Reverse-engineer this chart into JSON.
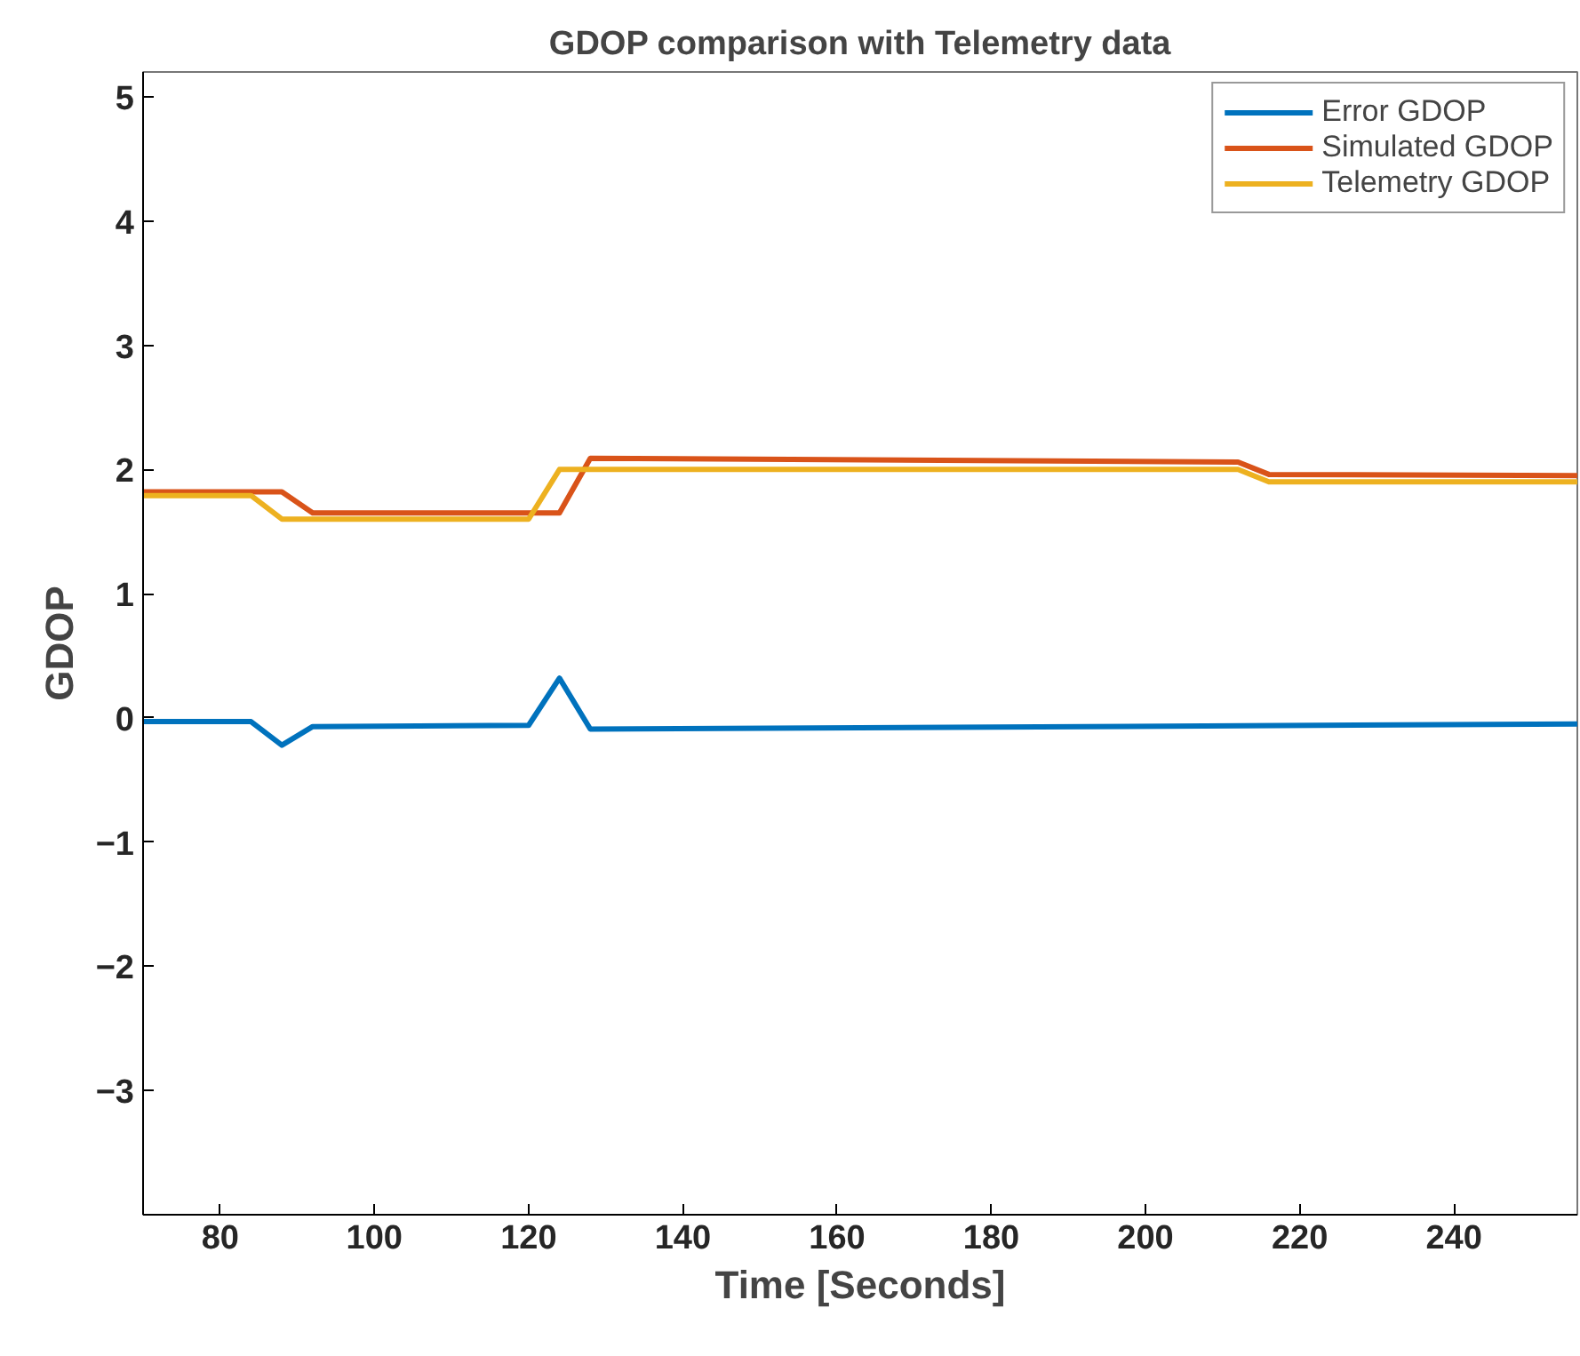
{
  "chart_data": {
    "type": "line",
    "title": "GDOP comparison with Telemetry data",
    "xlabel": "Time [Seconds]",
    "ylabel": "GDOP",
    "xlim": [
      70,
      256
    ],
    "ylim": [
      -4,
      5.2
    ],
    "xticks": [
      80,
      100,
      120,
      140,
      160,
      180,
      200,
      220,
      240
    ],
    "yticks": [
      -3,
      -2,
      -1,
      0,
      1,
      2,
      3,
      4,
      5
    ],
    "grid": false,
    "legend": "top right",
    "line_style": "solid",
    "marker": "none",
    "series": [
      {
        "name": "Error GDOP",
        "color": "#0072bd",
        "x": [
          70,
          84,
          88,
          92,
          120,
          124,
          128,
          256
        ],
        "values": [
          -0.03,
          -0.03,
          -0.22,
          -0.07,
          -0.06,
          0.32,
          -0.09,
          -0.05
        ]
      },
      {
        "name": "Simulated GDOP",
        "color": "#d95319",
        "x": [
          70,
          88,
          92,
          124,
          128,
          212,
          216,
          256
        ],
        "values": [
          1.82,
          1.82,
          1.65,
          1.65,
          2.09,
          2.06,
          1.96,
          1.95
        ]
      },
      {
        "name": "Telemetry GDOP",
        "color": "#edb120",
        "x": [
          70,
          84,
          88,
          120,
          124,
          212,
          216,
          256
        ],
        "values": [
          1.79,
          1.79,
          1.6,
          1.6,
          2.0,
          2.0,
          1.9,
          1.9
        ]
      }
    ]
  }
}
